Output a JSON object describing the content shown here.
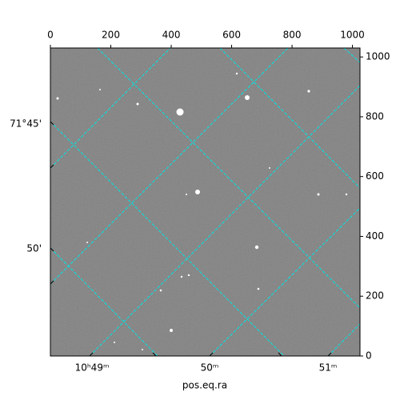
{
  "chart_data": {
    "type": "image",
    "xlabel": "pos.eq.ra",
    "xlim": [
      0,
      1025
    ],
    "xticks": [
      0,
      200,
      400,
      600,
      800,
      1000
    ],
    "ylim": [
      0,
      1030
    ],
    "yticks": [
      0,
      200,
      400,
      600,
      800,
      1000
    ],
    "ra_tick_labels": [
      "10ʰ49ᵐ",
      "50ᵐ",
      "51ᵐ"
    ],
    "dec_tick_labels": [
      "71°45'",
      "50'"
    ],
    "grid_color": "#00e5e5"
  }
}
